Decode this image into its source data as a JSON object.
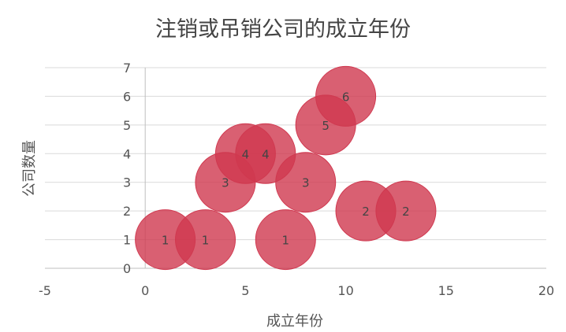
{
  "chart_data": {
    "type": "bubble",
    "title": "注销或吊销公司的成立年份",
    "xlabel": "成立年份",
    "ylabel": "公司数量",
    "xlim": [
      -5,
      20
    ],
    "ylim": [
      0,
      7
    ],
    "x_ticks": [
      -5,
      0,
      5,
      10,
      15,
      20
    ],
    "y_ticks": [
      0,
      1,
      2,
      3,
      4,
      5,
      6,
      7
    ],
    "grid": true,
    "legend": "none",
    "series": [
      {
        "color": "#d0384f",
        "points": [
          {
            "x": 1,
            "y": 1,
            "label": "1"
          },
          {
            "x": 3,
            "y": 1,
            "label": "1"
          },
          {
            "x": 7,
            "y": 1,
            "label": "1"
          },
          {
            "x": 11,
            "y": 2,
            "label": "2"
          },
          {
            "x": 13,
            "y": 2,
            "label": "2"
          },
          {
            "x": 4,
            "y": 3,
            "label": "3"
          },
          {
            "x": 8,
            "y": 3,
            "label": "3"
          },
          {
            "x": 5,
            "y": 4,
            "label": "4"
          },
          {
            "x": 6,
            "y": 4,
            "label": "4"
          },
          {
            "x": 9,
            "y": 5,
            "label": "5"
          },
          {
            "x": 10,
            "y": 6,
            "label": "6"
          }
        ]
      }
    ]
  }
}
